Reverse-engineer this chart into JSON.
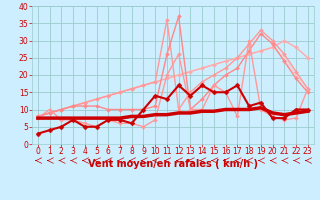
{
  "title": "",
  "xlabel": "Vent moyen/en rafales ( km/h )",
  "ylabel": "",
  "bg_color": "#cceeff",
  "grid_color": "#99cccc",
  "xlim": [
    -0.5,
    23.5
  ],
  "ylim": [
    0,
    40
  ],
  "yticks": [
    0,
    5,
    10,
    15,
    20,
    25,
    30,
    35,
    40
  ],
  "xticks": [
    0,
    1,
    2,
    3,
    4,
    5,
    6,
    7,
    8,
    9,
    10,
    11,
    12,
    13,
    14,
    15,
    16,
    17,
    18,
    19,
    20,
    21,
    22,
    23
  ],
  "lines": [
    {
      "x": [
        0,
        1,
        2,
        3,
        4,
        5,
        6,
        7,
        8,
        9,
        10,
        11,
        12,
        13,
        14,
        15,
        16,
        17,
        18,
        19,
        20,
        21,
        22,
        23
      ],
      "y": [
        8,
        9,
        10,
        11,
        12,
        13,
        14,
        15,
        16,
        17,
        18,
        19,
        20,
        21,
        22,
        23,
        24,
        25,
        26,
        27,
        28,
        25,
        20,
        16
      ],
      "color": "#ffcccc",
      "lw": 1.0,
      "marker": null,
      "ms": 0,
      "zorder": 2
    },
    {
      "x": [
        0,
        1,
        2,
        3,
        4,
        5,
        6,
        7,
        8,
        9,
        10,
        11,
        12,
        13,
        14,
        15,
        16,
        17,
        18,
        19,
        20,
        21,
        22,
        23
      ],
      "y": [
        8,
        9,
        10,
        11,
        12,
        13,
        14,
        15,
        16,
        17,
        18,
        19,
        20,
        21,
        22,
        23,
        24,
        25,
        26,
        27,
        28,
        30,
        28,
        25
      ],
      "color": "#ffaaaa",
      "lw": 1.0,
      "marker": "D",
      "ms": 2,
      "zorder": 3
    },
    {
      "x": [
        0,
        1,
        2,
        3,
        4,
        5,
        6,
        7,
        8,
        9,
        10,
        11,
        12,
        13,
        14,
        15,
        16,
        17,
        18,
        19,
        20,
        21,
        22,
        23
      ],
      "y": [
        8,
        9,
        10,
        11,
        12,
        13,
        14,
        15,
        16,
        17,
        18,
        36,
        10,
        15,
        18,
        20,
        22,
        25,
        29,
        33,
        30,
        26,
        21,
        16
      ],
      "color": "#ff9999",
      "lw": 1.0,
      "marker": "D",
      "ms": 2,
      "zorder": 3
    },
    {
      "x": [
        0,
        1,
        2,
        3,
        4,
        5,
        6,
        7,
        8,
        9,
        10,
        11,
        12,
        13,
        14,
        15,
        16,
        17,
        18,
        19,
        20,
        21,
        22,
        23
      ],
      "y": [
        8,
        9,
        10,
        11,
        11,
        11,
        10,
        10,
        10,
        10,
        11,
        26,
        37,
        10,
        13,
        17,
        20,
        22,
        27,
        32,
        29,
        24,
        19,
        15
      ],
      "color": "#ff8888",
      "lw": 1.0,
      "marker": "D",
      "ms": 2,
      "zorder": 3
    },
    {
      "x": [
        0,
        1,
        2,
        3,
        4,
        5,
        6,
        7,
        8,
        9,
        10,
        11,
        12,
        13,
        14,
        15,
        16,
        17,
        18,
        19,
        20,
        21,
        22,
        23
      ],
      "y": [
        7.5,
        10,
        7,
        7,
        6,
        5,
        7,
        6,
        6,
        5,
        7,
        20,
        26,
        10,
        10,
        17,
        15,
        8,
        30,
        10,
        8,
        7,
        7.5,
        16
      ],
      "color": "#ff9999",
      "lw": 1.0,
      "marker": "D",
      "ms": 2,
      "zorder": 4
    },
    {
      "x": [
        0,
        1,
        2,
        3,
        4,
        5,
        6,
        7,
        8,
        9,
        10,
        11,
        12,
        13,
        14,
        15,
        16,
        17,
        18,
        19,
        20,
        21,
        22,
        23
      ],
      "y": [
        3,
        4,
        5,
        7,
        5,
        5,
        7,
        7,
        6,
        10,
        14,
        13,
        17,
        14,
        17,
        15,
        15,
        17,
        11,
        12,
        7.5,
        7.5,
        10,
        10
      ],
      "color": "#cc0000",
      "lw": 1.5,
      "marker": "D",
      "ms": 2.5,
      "zorder": 6
    },
    {
      "x": [
        0,
        1,
        2,
        3,
        4,
        5,
        6,
        7,
        8,
        9,
        10,
        11,
        12,
        13,
        14,
        15,
        16,
        17,
        18,
        19,
        20,
        21,
        22,
        23
      ],
      "y": [
        7.5,
        7.5,
        7.5,
        7.5,
        7.5,
        7.5,
        7.5,
        7.5,
        8,
        8,
        8.5,
        8.5,
        9,
        9,
        9.5,
        9.5,
        10,
        10,
        10,
        10.5,
        9,
        8.5,
        9,
        9.5
      ],
      "color": "#cc0000",
      "lw": 2.5,
      "marker": null,
      "ms": 0,
      "zorder": 5
    }
  ],
  "arrow_color": "#cc0000",
  "xlabel_color": "#cc0000",
  "xlabel_fontsize": 7,
  "tick_color": "#cc0000",
  "tick_fontsize": 5.5
}
